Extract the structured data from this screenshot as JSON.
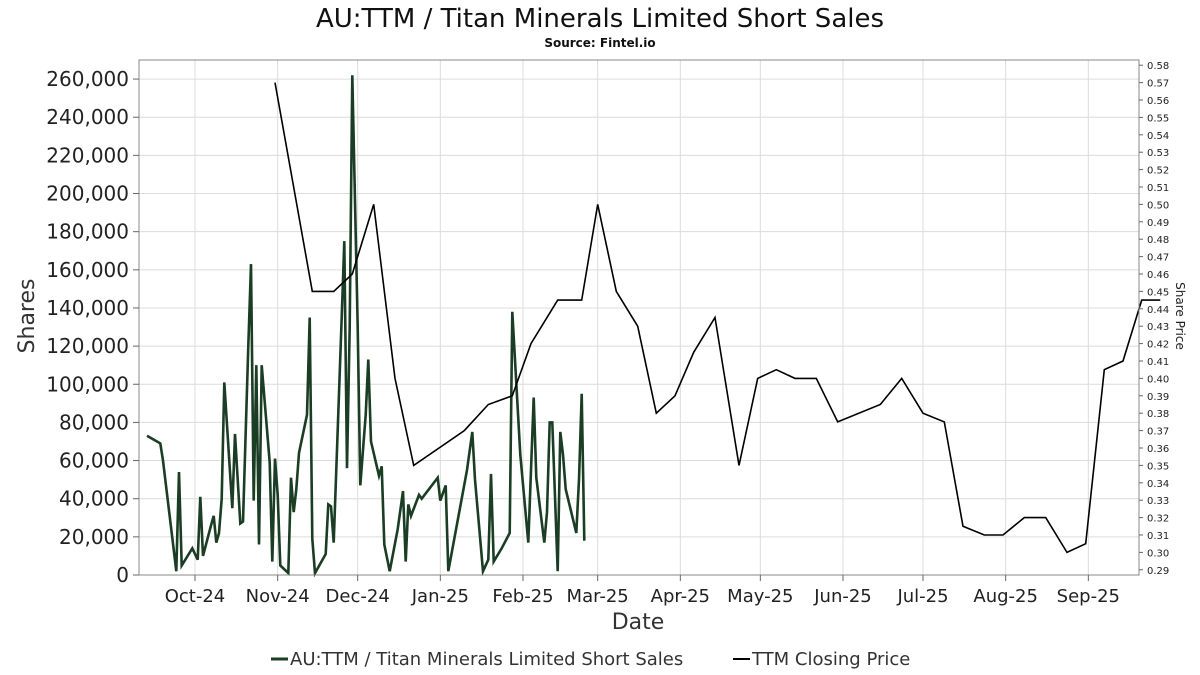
{
  "chart_data": {
    "type": "line",
    "title": "AU:TTM / Titan Minerals Limited Short Sales",
    "subtitle": "Source: Fintel.io",
    "xlabel": "Date",
    "ylabel": "Shares",
    "ylabel_right": "Share Price",
    "xlim": [
      "2024-09-10",
      "2025-09-20"
    ],
    "ylim": [
      0,
      270000
    ],
    "ylim_right": [
      0.287,
      0.583
    ],
    "grid": true,
    "legend_position": "bottom",
    "x_ticks": [
      {
        "date": "2024-10-01",
        "label": "Oct-24"
      },
      {
        "date": "2024-11-01",
        "label": "Nov-24"
      },
      {
        "date": "2024-12-01",
        "label": "Dec-24"
      },
      {
        "date": "2025-01-01",
        "label": "Jan-25"
      },
      {
        "date": "2025-02-01",
        "label": "Feb-25"
      },
      {
        "date": "2025-03-01",
        "label": "Mar-25"
      },
      {
        "date": "2025-04-01",
        "label": "Apr-25"
      },
      {
        "date": "2025-05-01",
        "label": "May-25"
      },
      {
        "date": "2025-06-01",
        "label": "Jun-25"
      },
      {
        "date": "2025-07-01",
        "label": "Jul-25"
      },
      {
        "date": "2025-08-01",
        "label": "Aug-25"
      },
      {
        "date": "2025-09-01",
        "label": "Sep-25"
      }
    ],
    "y_ticks_left": [
      {
        "value": 0,
        "label": "0"
      },
      {
        "value": 20000,
        "label": "20,000"
      },
      {
        "value": 40000,
        "label": "40,000"
      },
      {
        "value": 60000,
        "label": "60,000"
      },
      {
        "value": 80000,
        "label": "80,000"
      },
      {
        "value": 100000,
        "label": "100,000"
      },
      {
        "value": 120000,
        "label": "120,000"
      },
      {
        "value": 140000,
        "label": "140,000"
      },
      {
        "value": 160000,
        "label": "160,000"
      },
      {
        "value": 180000,
        "label": "180,000"
      },
      {
        "value": 200000,
        "label": "200,000"
      },
      {
        "value": 220000,
        "label": "220,000"
      },
      {
        "value": 240000,
        "label": "240,000"
      },
      {
        "value": 260000,
        "label": "260,000"
      }
    ],
    "y_ticks_right": [
      {
        "value": 0.29,
        "label": "0.29"
      },
      {
        "value": 0.3,
        "label": "0.30"
      },
      {
        "value": 0.31,
        "label": "0.31"
      },
      {
        "value": 0.32,
        "label": "0.32"
      },
      {
        "value": 0.33,
        "label": "0.33"
      },
      {
        "value": 0.34,
        "label": "0.34"
      },
      {
        "value": 0.35,
        "label": "0.35"
      },
      {
        "value": 0.36,
        "label": "0.36"
      },
      {
        "value": 0.37,
        "label": "0.37"
      },
      {
        "value": 0.38,
        "label": "0.38"
      },
      {
        "value": 0.39,
        "label": "0.39"
      },
      {
        "value": 0.4,
        "label": "0.40"
      },
      {
        "value": 0.41,
        "label": "0.41"
      },
      {
        "value": 0.42,
        "label": "0.42"
      },
      {
        "value": 0.43,
        "label": "0.43"
      },
      {
        "value": 0.44,
        "label": "0.44"
      },
      {
        "value": 0.45,
        "label": "0.45"
      },
      {
        "value": 0.46,
        "label": "0.46"
      },
      {
        "value": 0.47,
        "label": "0.47"
      },
      {
        "value": 0.48,
        "label": "0.48"
      },
      {
        "value": 0.49,
        "label": "0.49"
      },
      {
        "value": 0.5,
        "label": "0.50"
      },
      {
        "value": 0.51,
        "label": "0.51"
      },
      {
        "value": 0.52,
        "label": "0.52"
      },
      {
        "value": 0.53,
        "label": "0.53"
      },
      {
        "value": 0.54,
        "label": "0.54"
      },
      {
        "value": 0.55,
        "label": "0.55"
      },
      {
        "value": 0.56,
        "label": "0.56"
      },
      {
        "value": 0.57,
        "label": "0.57"
      },
      {
        "value": 0.58,
        "label": "0.58"
      }
    ],
    "series": [
      {
        "name": "AU:TTM / Titan Minerals Limited Short Sales",
        "axis": "left",
        "color": "#1a3d24",
        "points": [
          [
            "2024-09-13",
            73000
          ],
          [
            "2024-09-18",
            69000
          ],
          [
            "2024-09-19",
            60000
          ],
          [
            "2024-09-24",
            2000
          ],
          [
            "2024-09-25",
            54000
          ],
          [
            "2024-09-26",
            5000
          ],
          [
            "2024-09-30",
            14000
          ],
          [
            "2024-10-02",
            8000
          ],
          [
            "2024-10-03",
            41000
          ],
          [
            "2024-10-04",
            10000
          ],
          [
            "2024-10-07",
            26000
          ],
          [
            "2024-10-08",
            31000
          ],
          [
            "2024-10-09",
            17000
          ],
          [
            "2024-10-10",
            22000
          ],
          [
            "2024-10-11",
            40000
          ],
          [
            "2024-10-12",
            101000
          ],
          [
            "2024-10-15",
            35000
          ],
          [
            "2024-10-16",
            74000
          ],
          [
            "2024-10-18",
            27000
          ],
          [
            "2024-10-19",
            28000
          ],
          [
            "2024-10-21",
            120000
          ],
          [
            "2024-10-22",
            163000
          ],
          [
            "2024-10-23",
            39000
          ],
          [
            "2024-10-24",
            110000
          ],
          [
            "2024-10-25",
            16000
          ],
          [
            "2024-10-26",
            110000
          ],
          [
            "2024-10-29",
            59000
          ],
          [
            "2024-10-30",
            7000
          ],
          [
            "2024-10-31",
            61000
          ],
          [
            "2024-11-01",
            42000
          ],
          [
            "2024-11-02",
            5000
          ],
          [
            "2024-11-05",
            1000
          ],
          [
            "2024-11-06",
            51000
          ],
          [
            "2024-11-07",
            33000
          ],
          [
            "2024-11-08",
            45000
          ],
          [
            "2024-11-09",
            64000
          ],
          [
            "2024-11-12",
            84000
          ],
          [
            "2024-11-13",
            135000
          ],
          [
            "2024-11-14",
            19000
          ],
          [
            "2024-11-15",
            1000
          ],
          [
            "2024-11-19",
            11000
          ],
          [
            "2024-11-20",
            37000
          ],
          [
            "2024-11-21",
            36000
          ],
          [
            "2024-11-22",
            17000
          ],
          [
            "2024-11-25",
            135000
          ],
          [
            "2024-11-26",
            175000
          ],
          [
            "2024-11-27",
            56000
          ],
          [
            "2024-11-28",
            130000
          ],
          [
            "2024-11-29",
            262000
          ],
          [
            "2024-12-01",
            130000
          ],
          [
            "2024-12-02",
            47000
          ],
          [
            "2024-12-04",
            84000
          ],
          [
            "2024-12-05",
            113000
          ],
          [
            "2024-12-06",
            70000
          ],
          [
            "2024-12-09",
            52000
          ],
          [
            "2024-12-10",
            57000
          ],
          [
            "2024-12-11",
            16000
          ],
          [
            "2024-12-13",
            2000
          ],
          [
            "2024-12-16",
            24000
          ],
          [
            "2024-12-18",
            44000
          ],
          [
            "2024-12-19",
            7000
          ],
          [
            "2024-12-20",
            37000
          ],
          [
            "2024-12-21",
            31000
          ],
          [
            "2024-12-24",
            42000
          ],
          [
            "2024-12-25",
            40000
          ],
          [
            "2024-12-31",
            51000
          ],
          [
            "2025-01-01",
            39000
          ],
          [
            "2025-01-03",
            47000
          ],
          [
            "2025-01-04",
            2000
          ],
          [
            "2025-01-11",
            55000
          ],
          [
            "2025-01-13",
            75000
          ],
          [
            "2025-01-14",
            50000
          ],
          [
            "2025-01-17",
            2000
          ],
          [
            "2025-01-19",
            8000
          ],
          [
            "2025-01-20",
            53000
          ],
          [
            "2025-01-21",
            7000
          ],
          [
            "2025-01-24",
            14000
          ],
          [
            "2025-01-27",
            22000
          ],
          [
            "2025-01-28",
            138000
          ],
          [
            "2025-01-31",
            63000
          ],
          [
            "2025-02-03",
            17000
          ],
          [
            "2025-02-05",
            93000
          ],
          [
            "2025-02-06",
            51000
          ],
          [
            "2025-02-09",
            17000
          ],
          [
            "2025-02-10",
            33000
          ],
          [
            "2025-02-11",
            80000
          ],
          [
            "2025-02-12",
            80000
          ],
          [
            "2025-02-14",
            2000
          ],
          [
            "2025-02-15",
            75000
          ],
          [
            "2025-02-16",
            63000
          ],
          [
            "2025-02-17",
            45000
          ],
          [
            "2025-02-21",
            22000
          ],
          [
            "2025-02-22",
            50000
          ],
          [
            "2025-02-23",
            95000
          ],
          [
            "2025-02-24",
            18000
          ]
        ]
      },
      {
        "name": "TTM Closing Price",
        "axis": "right",
        "color": "#000000",
        "points": [
          [
            "2024-10-31",
            0.57
          ],
          [
            "2024-11-14",
            0.45
          ],
          [
            "2024-11-22",
            0.45
          ],
          [
            "2024-11-29",
            0.46
          ],
          [
            "2024-12-07",
            0.5
          ],
          [
            "2024-12-15",
            0.4
          ],
          [
            "2024-12-22",
            0.35
          ],
          [
            "2025-01-10",
            0.37
          ],
          [
            "2025-01-19",
            0.385
          ],
          [
            "2025-01-28",
            0.39
          ],
          [
            "2025-02-04",
            0.42
          ],
          [
            "2025-02-14",
            0.445
          ],
          [
            "2025-02-23",
            0.445
          ],
          [
            "2025-03-01",
            0.5
          ],
          [
            "2025-03-08",
            0.45
          ],
          [
            "2025-03-16",
            0.43
          ],
          [
            "2025-03-23",
            0.38
          ],
          [
            "2025-03-30",
            0.39
          ],
          [
            "2025-04-06",
            0.415
          ],
          [
            "2025-04-14",
            0.435
          ],
          [
            "2025-04-23",
            0.35
          ],
          [
            "2025-04-30",
            0.4
          ],
          [
            "2025-05-07",
            0.405
          ],
          [
            "2025-05-14",
            0.4
          ],
          [
            "2025-05-22",
            0.4
          ],
          [
            "2025-05-30",
            0.375
          ],
          [
            "2025-06-15",
            0.385
          ],
          [
            "2025-06-23",
            0.4
          ],
          [
            "2025-07-01",
            0.38
          ],
          [
            "2025-07-09",
            0.375
          ],
          [
            "2025-07-16",
            0.315
          ],
          [
            "2025-07-24",
            0.31
          ],
          [
            "2025-07-31",
            0.31
          ],
          [
            "2025-08-08",
            0.32
          ],
          [
            "2025-08-16",
            0.32
          ],
          [
            "2025-08-24",
            0.3
          ],
          [
            "2025-08-31",
            0.305
          ],
          [
            "2025-09-07",
            0.405
          ],
          [
            "2025-09-14",
            0.41
          ],
          [
            "2025-09-21",
            0.445
          ],
          [
            "2025-09-28",
            0.445
          ]
        ]
      }
    ]
  }
}
